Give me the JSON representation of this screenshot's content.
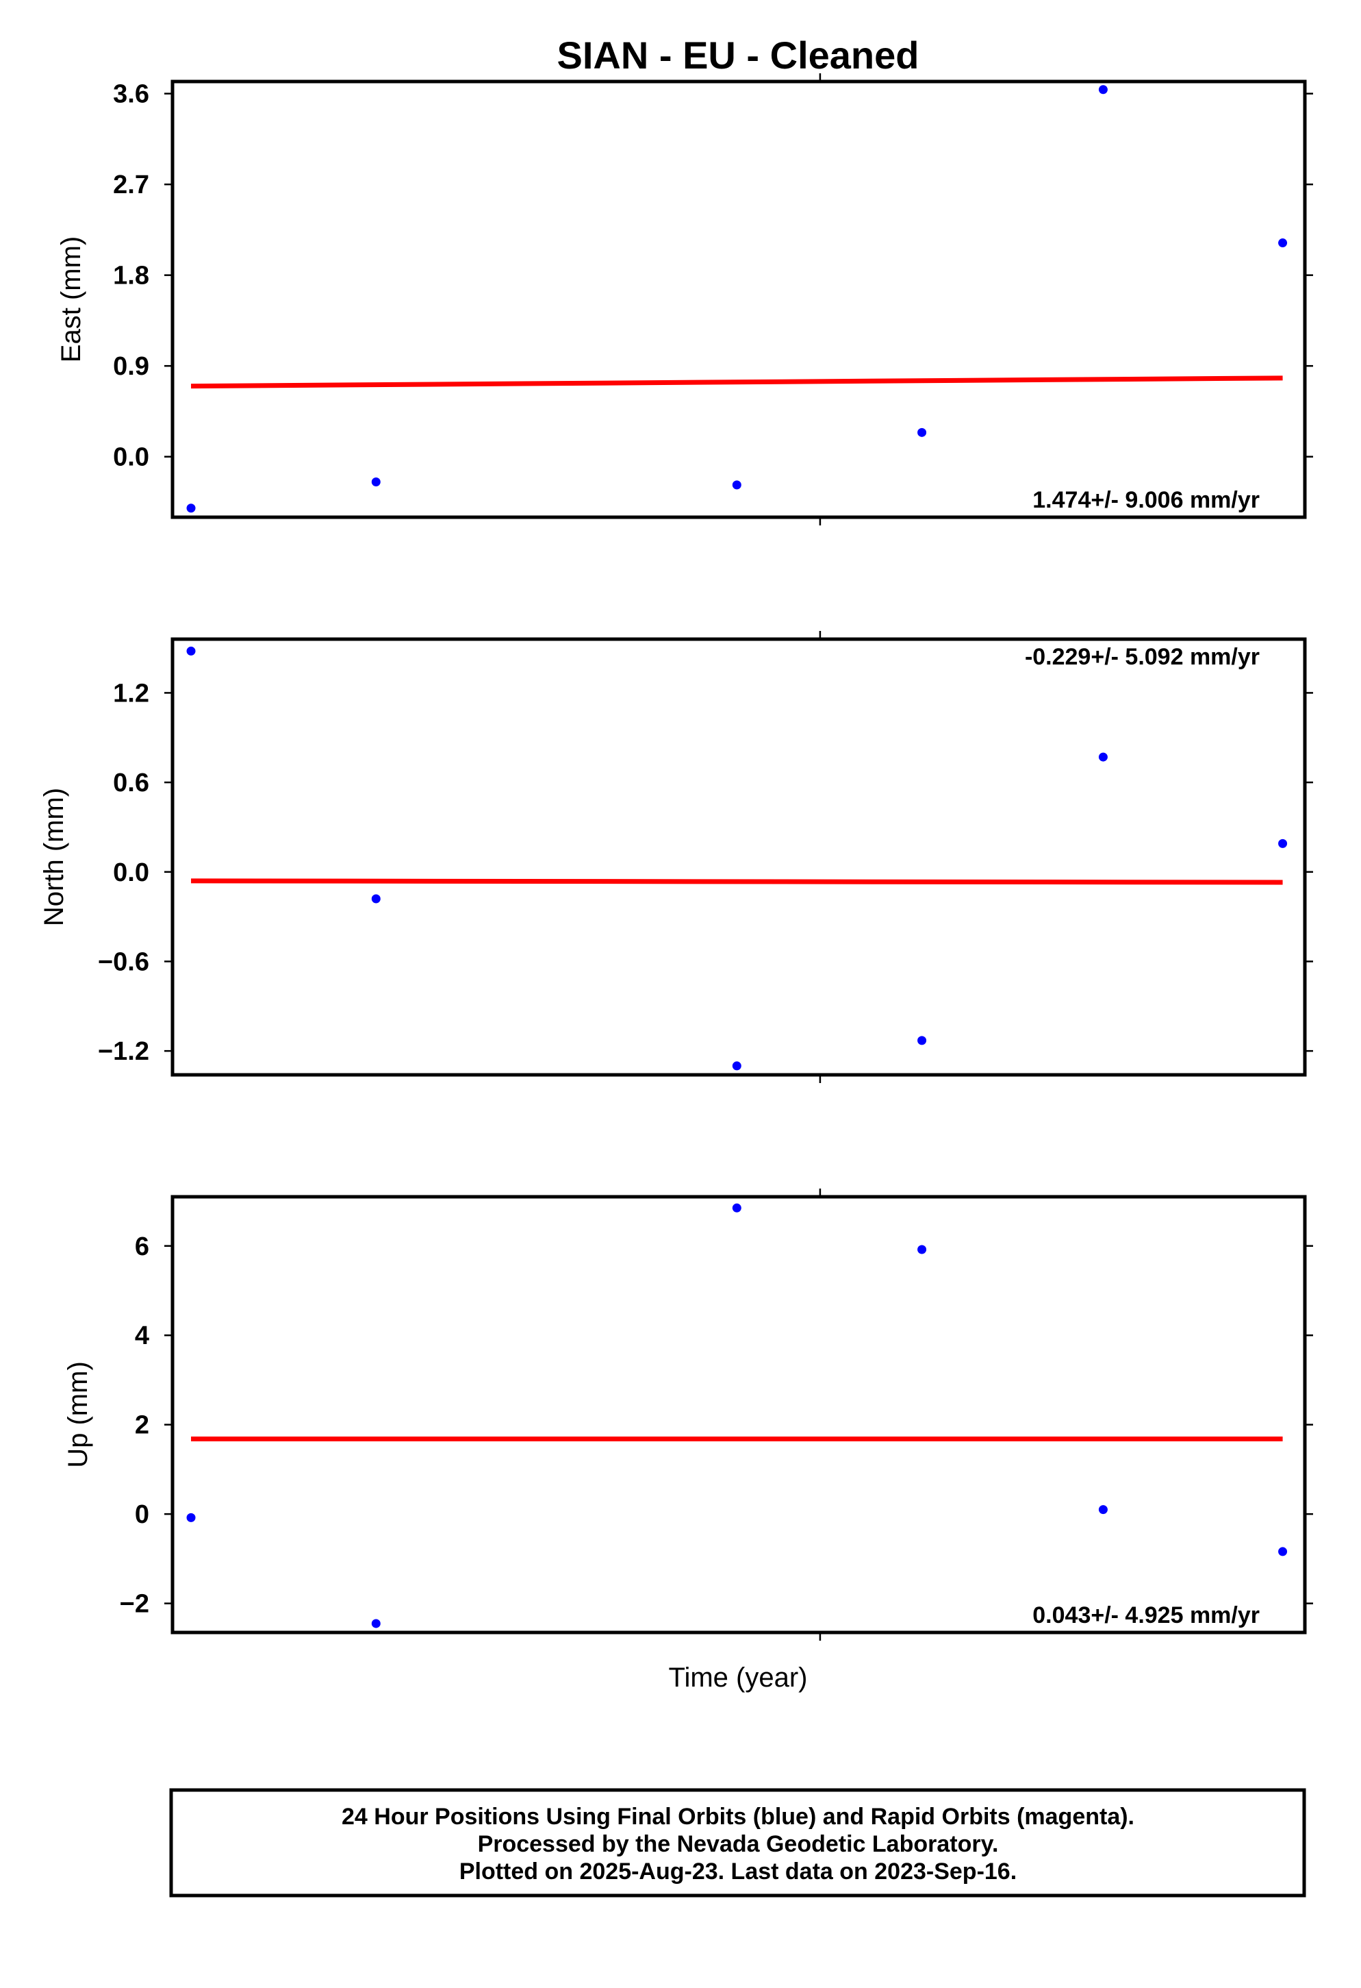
{
  "chart_data": {
    "title": "SIAN  - EU - Cleaned",
    "xlabel": "Time (year)",
    "colors": {
      "points": "#0000ff",
      "fit": "#ff0000",
      "frame": "#000000"
    },
    "panels": [
      {
        "type": "scatter",
        "ylabel": "East (mm)",
        "ylim": [
          -0.6,
          3.72
        ],
        "yticks": [
          "3.6",
          "2.7",
          "1.8",
          "0.9",
          "0.0"
        ],
        "ytick_values": [
          3.6,
          2.7,
          1.8,
          0.9,
          0.0
        ],
        "points": {
          "x": [
            0.0,
            1.0,
            2.95,
            3.95,
            4.93,
            5.9
          ],
          "y": [
            -0.51,
            -0.25,
            -0.28,
            0.24,
            3.64,
            2.12
          ]
        },
        "fit": {
          "x": [
            0.0,
            5.9
          ],
          "y": [
            0.7,
            0.78
          ]
        },
        "annotation": "1.474+/- 9.006 mm/yr",
        "annotation_pos": "bottom-right"
      },
      {
        "type": "scatter",
        "ylabel": "North (mm)",
        "ylim": [
          -1.36,
          1.56
        ],
        "yticks": [
          "1.2",
          "0.6",
          "0.0",
          "−0.6",
          "−1.2"
        ],
        "ytick_values": [
          1.2,
          0.6,
          0.0,
          -0.6,
          -1.2
        ],
        "points": {
          "x": [
            0.0,
            1.0,
            2.95,
            3.95,
            4.93,
            5.9
          ],
          "y": [
            1.48,
            -0.18,
            -1.3,
            -1.13,
            0.77,
            0.19
          ]
        },
        "fit": {
          "x": [
            0.0,
            5.9
          ],
          "y": [
            -0.06,
            -0.07
          ]
        },
        "annotation": "-0.229+/- 5.092 mm/yr",
        "annotation_pos": "top-right"
      },
      {
        "type": "scatter",
        "ylabel": "Up (mm)",
        "ylim": [
          -2.65,
          7.1
        ],
        "yticks": [
          "6",
          "4",
          "2",
          "0",
          "−2"
        ],
        "ytick_values": [
          6,
          4,
          2,
          0,
          -2
        ],
        "points": {
          "x": [
            0.0,
            1.0,
            2.95,
            3.95,
            4.93,
            5.9
          ],
          "y": [
            -0.08,
            -2.45,
            6.85,
            5.92,
            0.1,
            -0.84
          ]
        },
        "fit": {
          "x": [
            0.0,
            5.9
          ],
          "y": [
            1.68,
            1.68
          ]
        },
        "annotation": "0.043+/- 4.925 mm/yr",
        "annotation_pos": "bottom-right"
      }
    ],
    "xlim": [
      -0.1,
      6.02
    ],
    "x_mid_tick": 3.4
  },
  "footer": {
    "lines": [
      "24 Hour Positions Using Final Orbits (blue) and Rapid Orbits (magenta).",
      "Processed by the Nevada Geodetic Laboratory.",
      "Plotted on 2025-Aug-23. Last data on 2023-Sep-16."
    ]
  }
}
